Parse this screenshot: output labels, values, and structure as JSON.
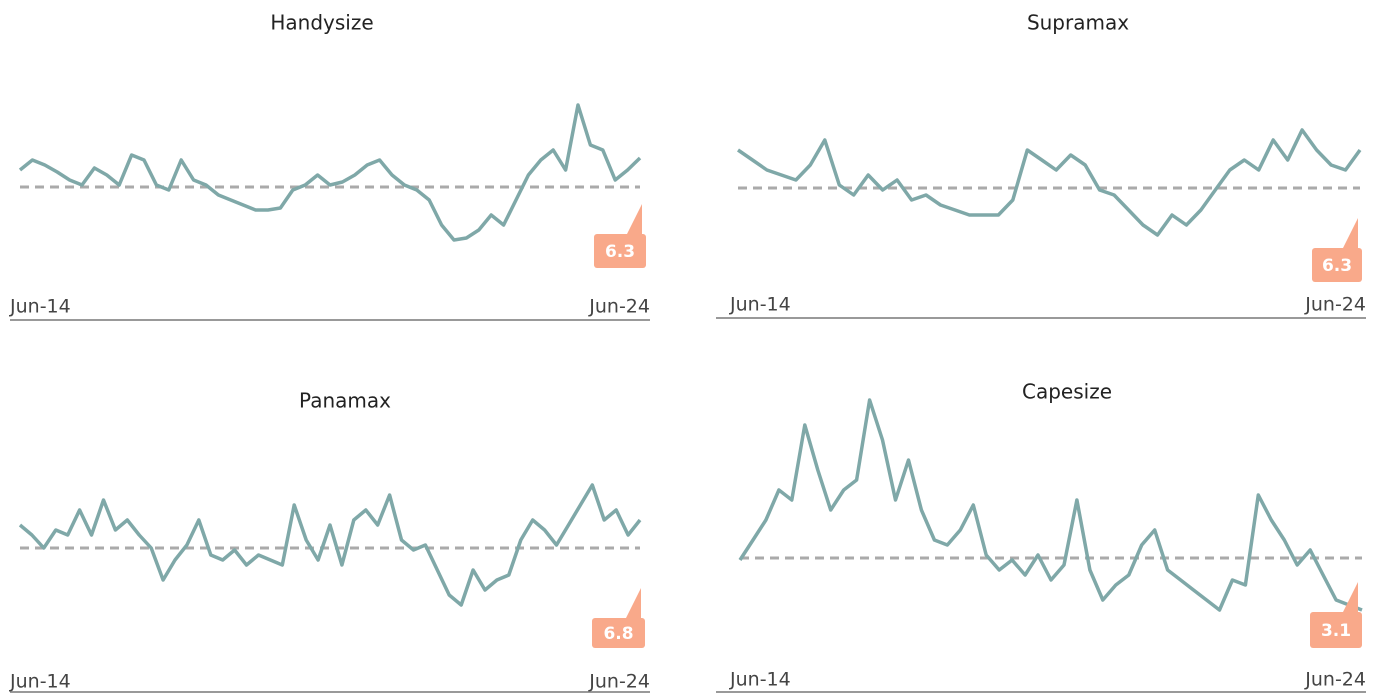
{
  "chart_data": [
    {
      "type": "line",
      "title": "Handysize",
      "x_labels": [
        "Jun-14",
        "Jun-24"
      ],
      "ylim": [
        0,
        170
      ],
      "reference": 73,
      "annotation": "6.3",
      "color": "#7fa8a8",
      "reference_color": "#aaaaaa",
      "annotation_color": "#f9a98a",
      "values": [
        90,
        100,
        95,
        88,
        80,
        75,
        92,
        85,
        75,
        105,
        100,
        75,
        70,
        100,
        80,
        75,
        65,
        60,
        55,
        50,
        50,
        52,
        70,
        75,
        85,
        75,
        78,
        85,
        95,
        100,
        85,
        75,
        70,
        60,
        35,
        20,
        22,
        30,
        45,
        35,
        60,
        85,
        100,
        110,
        90,
        155,
        115,
        110,
        80,
        90,
        102
      ]
    },
    {
      "type": "line",
      "title": "Supramax",
      "x_labels": [
        "Jun-14",
        "Jun-24"
      ],
      "ylim": [
        0,
        170
      ],
      "reference": 72,
      "annotation": "6.3",
      "color": "#7fa8a8",
      "reference_color": "#aaaaaa",
      "annotation_color": "#f9a98a",
      "values": [
        110,
        100,
        90,
        85,
        80,
        95,
        120,
        75,
        65,
        85,
        70,
        80,
        60,
        65,
        55,
        50,
        45,
        45,
        45,
        60,
        110,
        100,
        90,
        105,
        95,
        70,
        65,
        50,
        35,
        25,
        45,
        35,
        50,
        70,
        90,
        100,
        90,
        120,
        100,
        130,
        110,
        95,
        90,
        110
      ]
    },
    {
      "type": "line",
      "title": "Panamax",
      "x_labels": [
        "Jun-14",
        "Jun-24"
      ],
      "ylim": [
        0,
        170
      ],
      "reference": 82,
      "annotation": "6.8",
      "color": "#7fa8a8",
      "reference_color": "#aaaaaa",
      "annotation_color": "#f9a98a",
      "values": [
        105,
        95,
        82,
        100,
        95,
        120,
        95,
        130,
        100,
        110,
        95,
        82,
        50,
        70,
        85,
        110,
        75,
        70,
        80,
        65,
        75,
        70,
        65,
        125,
        90,
        70,
        105,
        65,
        110,
        120,
        105,
        135,
        90,
        80,
        85,
        60,
        35,
        25,
        60,
        40,
        50,
        55,
        90,
        110,
        100,
        85,
        105,
        125,
        145,
        110,
        120,
        95,
        110
      ]
    },
    {
      "type": "line",
      "title": "Capesize",
      "x_labels": [
        "Jun-14",
        "Jun-24"
      ],
      "ylim": [
        0,
        250
      ],
      "reference": 72,
      "annotation": "3.1",
      "color": "#7fa8a8",
      "reference_color": "#aaaaaa",
      "annotation_color": "#f9a98a",
      "values": [
        70,
        90,
        110,
        140,
        130,
        205,
        160,
        120,
        140,
        150,
        230,
        190,
        130,
        170,
        120,
        90,
        85,
        100,
        125,
        75,
        60,
        70,
        55,
        75,
        50,
        65,
        130,
        60,
        30,
        45,
        55,
        85,
        100,
        60,
        50,
        40,
        30,
        20,
        50,
        45,
        135,
        110,
        90,
        65,
        80,
        55,
        30,
        25,
        20
      ]
    }
  ]
}
